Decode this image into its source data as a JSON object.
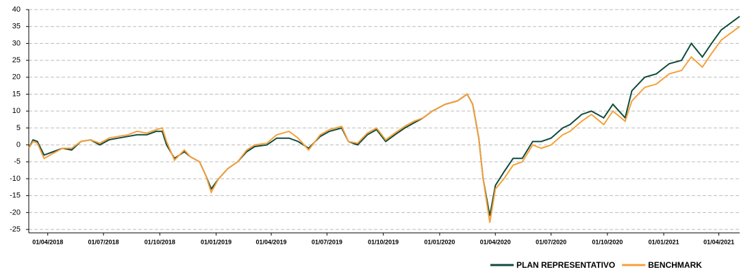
{
  "chart_data": {
    "type": "line",
    "x": [
      "01/03/2018",
      "08/03/2018",
      "15/03/2018",
      "26/03/2018",
      "10/04/2018",
      "25/04/2018",
      "10/05/2018",
      "25/05/2018",
      "10/06/2018",
      "25/06/2018",
      "10/07/2018",
      "25/07/2018",
      "10/08/2018",
      "25/08/2018",
      "10/09/2018",
      "25/09/2018",
      "05/10/2018",
      "12/10/2018",
      "25/10/2018",
      "10/11/2018",
      "20/11/2018",
      "05/12/2018",
      "15/12/2018",
      "24/12/2018",
      "05/01/2019",
      "20/01/2019",
      "05/02/2019",
      "20/02/2019",
      "05/03/2019",
      "25/03/2019",
      "10/04/2019",
      "30/04/2019",
      "15/05/2019",
      "01/06/2019",
      "20/06/2019",
      "05/07/2019",
      "25/07/2019",
      "05/08/2019",
      "20/08/2019",
      "05/09/2019",
      "20/09/2019",
      "05/10/2019",
      "20/10/2019",
      "05/11/2019",
      "20/11/2019",
      "05/12/2019",
      "20/12/2019",
      "10/01/2020",
      "30/01/2020",
      "15/02/2020",
      "24/02/2020",
      "05/03/2020",
      "12/03/2020",
      "23/03/2020",
      "01/04/2020",
      "15/04/2020",
      "30/04/2020",
      "15/05/2020",
      "01/06/2020",
      "15/06/2020",
      "01/07/2020",
      "20/07/2020",
      "01/08/2020",
      "20/08/2020",
      "05/09/2020",
      "25/09/2020",
      "10/10/2020",
      "30/10/2020",
      "10/11/2020",
      "01/12/2020",
      "20/12/2020",
      "10/01/2021",
      "30/01/2021",
      "15/02/2021",
      "05/03/2021",
      "20/03/2021",
      "05/04/2021",
      "20/04/2021",
      "05/05/2021"
    ],
    "series": [
      {
        "name": "PLAN REPRESENTATIVO",
        "color": "#0d4a3c",
        "values": [
          -1,
          1.5,
          1,
          -3,
          -2,
          -1,
          -1.5,
          1,
          1.5,
          0,
          1.5,
          2,
          2.5,
          3,
          3,
          4,
          4,
          0,
          -4,
          -2,
          -3.5,
          -5,
          -9,
          -13,
          -10,
          -7,
          -5,
          -2,
          -0.5,
          0,
          2,
          2,
          1,
          -1,
          2.5,
          4,
          5,
          1,
          0,
          3,
          4.5,
          1,
          3,
          5,
          6.5,
          8,
          10,
          12,
          13,
          15,
          12,
          2,
          -10,
          -21,
          -12,
          -8,
          -4,
          -4,
          1,
          1,
          2,
          5,
          6,
          9,
          10,
          8,
          12,
          8,
          16,
          20,
          21,
          24,
          25,
          30,
          26,
          30,
          34,
          36,
          38
        ]
      },
      {
        "name": "BENCHMARK",
        "color": "#f5a03a",
        "values": [
          -1,
          1,
          0.5,
          -4,
          -2.5,
          -1,
          -1,
          1,
          1.5,
          0.5,
          2,
          2.5,
          3,
          4,
          3.5,
          4.5,
          5,
          1,
          -4.5,
          -1.5,
          -3.5,
          -5,
          -9,
          -14,
          -10,
          -7,
          -5,
          -1.5,
          0,
          0.5,
          3,
          4,
          2,
          -1.5,
          3,
          4.5,
          5.5,
          1,
          0.5,
          3.5,
          5,
          1.5,
          3.5,
          5.5,
          7,
          8,
          10,
          12,
          13,
          15,
          12,
          2,
          -10,
          -23,
          -13,
          -10,
          -6,
          -5,
          0,
          -1,
          0,
          3,
          4,
          7,
          9,
          6,
          10,
          7,
          13,
          17,
          18,
          21,
          22,
          26,
          23,
          27,
          31,
          33,
          35
        ]
      }
    ],
    "xlim": [
      "01/03/2018",
      "05/05/2021"
    ],
    "xticks": [
      "01/04/2018",
      "01/07/2018",
      "01/10/2018",
      "01/01/2019",
      "01/04/2019",
      "01/07/2019",
      "01/10/2019",
      "01/01/2020",
      "01/04/2020",
      "01/07/2020",
      "01/10/2020",
      "01/01/2021",
      "01/04/2021"
    ],
    "ylim": [
      -26,
      40
    ],
    "yticks": [
      -25,
      -20,
      -15,
      -10,
      -5,
      0,
      5,
      10,
      15,
      20,
      25,
      30,
      35,
      40
    ],
    "grid": true
  }
}
